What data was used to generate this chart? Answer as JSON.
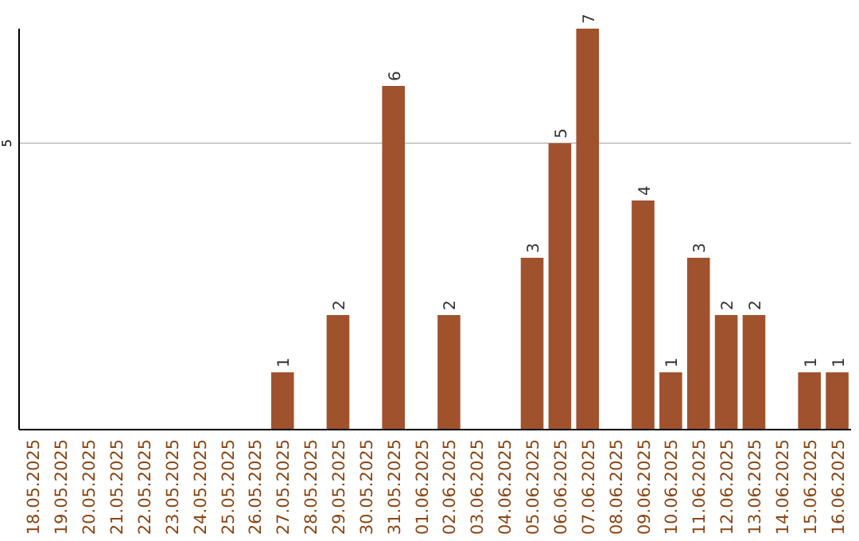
{
  "chart_data": {
    "type": "bar",
    "categories": [
      "18.05.2025",
      "19.05.2025",
      "20.05.2025",
      "21.05.2025",
      "22.05.2025",
      "23.05.2025",
      "24.05.2025",
      "25.05.2025",
      "26.05.2025",
      "27.05.2025",
      "28.05.2025",
      "29.05.2025",
      "30.05.2025",
      "31.05.2025",
      "01.06.2025",
      "02.06.2025",
      "03.06.2025",
      "04.06.2025",
      "05.06.2025",
      "06.06.2025",
      "07.06.2025",
      "08.06.2025",
      "09.06.2025",
      "10.06.2025",
      "11.06.2025",
      "12.06.2025",
      "13.06.2025",
      "14.06.2025",
      "15.06.2025",
      "16.06.2025"
    ],
    "values": [
      null,
      null,
      null,
      null,
      null,
      null,
      null,
      null,
      null,
      1,
      null,
      2,
      null,
      6,
      null,
      2,
      null,
      null,
      3,
      5,
      7,
      null,
      4,
      1,
      3,
      2,
      2,
      null,
      1,
      1
    ],
    "color": "#a0522d",
    "ylim": [
      0,
      7
    ],
    "yticks": [
      5
    ],
    "grid": "y",
    "data_labels": true
  }
}
